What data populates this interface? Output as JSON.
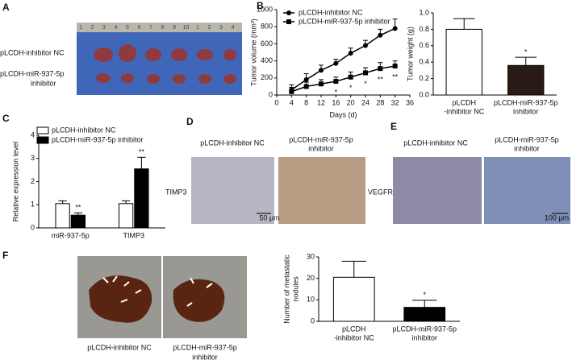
{
  "panel_labels": [
    "A",
    "B",
    "C",
    "D",
    "E",
    "F"
  ],
  "panel_a": {
    "ruler": [
      "1",
      "2",
      "3",
      "4",
      "5",
      "6",
      "7",
      "8",
      "9",
      "10",
      "1",
      "2",
      "3",
      "4"
    ],
    "rows": [
      "pLCDH-inhibitor NC",
      [
        "pLCDH-miR-937-5p",
        "inhibitor"
      ]
    ]
  },
  "panel_d": {
    "columns": [
      "pLCDH-inhibitor NC",
      [
        "pLCDH-miR-937-5p",
        "inhibitor"
      ]
    ],
    "row_label": "TIMP3",
    "scale_bar": "50 μm"
  },
  "panel_e": {
    "columns": [
      "pLCDH-inhibitor NC",
      [
        "pLCDH-miR-937-5p",
        "inhibitor"
      ]
    ],
    "row_label": "VEGFR",
    "scale_bar": "100 μm"
  },
  "panel_f": {
    "captions": [
      "pLCDH-inhibitor NC",
      [
        "pLCDH-miR-937-5p",
        "inhibitor"
      ]
    ]
  },
  "chart_data": [
    {
      "type": "line",
      "y_label": "Tumor volume (mm³)",
      "x_label": "Days (d)",
      "x": [
        4,
        8,
        12,
        16,
        20,
        24,
        28,
        32
      ],
      "xlim": [
        0,
        36
      ],
      "xticks": [
        0,
        4,
        8,
        12,
        16,
        20,
        24,
        28,
        32,
        36
      ],
      "ylim": [
        0,
        1000
      ],
      "yticks": [
        0,
        200,
        400,
        600,
        800,
        1000
      ],
      "series": [
        {
          "name": "pLCDH-inhibitor NC",
          "color": "#000000",
          "marker": "circle",
          "values": [
            60,
            180,
            290,
            370,
            490,
            580,
            700,
            780
          ],
          "errors": [
            60,
            70,
            60,
            50,
            60,
            60,
            70,
            110
          ]
        },
        {
          "name": "pLCDH-miR-937-5p inhibitor",
          "color": "#000000",
          "marker": "square",
          "values": [
            40,
            100,
            130,
            160,
            210,
            260,
            310,
            340
          ],
          "errors": [
            50,
            50,
            50,
            50,
            60,
            60,
            70,
            60
          ],
          "significance": [
            null,
            null,
            null,
            "*",
            "*",
            "*",
            "**",
            "**"
          ]
        }
      ]
    },
    {
      "type": "bar",
      "y_label": "Tumor weight (g)",
      "categories": [
        [
          "pLCDH",
          "-inhibitor NC"
        ],
        [
          "pLCDH-miR-937-5p",
          "inhibitor"
        ]
      ],
      "values": [
        0.8,
        0.36
      ],
      "errors": [
        0.13,
        0.1
      ],
      "colors": [
        "#ffffff",
        "#2a1a14"
      ],
      "significance": [
        null,
        "*"
      ],
      "ylim": [
        0,
        1
      ],
      "yticks": [
        {
          "value": 0,
          "label": "0.0"
        },
        0.2,
        0.4,
        0.6,
        0.8,
        {
          "value": 1,
          "label": "1.0"
        }
      ]
    },
    {
      "type": "bar",
      "y_label": "Relative expression level",
      "categories": [
        "miR-937-5p",
        "TIMP3"
      ],
      "ylim": [
        0,
        4
      ],
      "yticks": [
        0,
        1,
        2,
        3,
        4
      ],
      "series": [
        {
          "name": "pLCDH-inhibitor NC",
          "color": "#ffffff",
          "values": [
            1.05,
            1.05
          ],
          "errors": [
            0.12,
            0.12
          ]
        },
        {
          "name": "pLCDH-miR-937-5p inhibitor",
          "color": "#000000",
          "values": [
            0.55,
            2.55
          ],
          "errors": [
            0.1,
            0.5
          ],
          "significance": [
            "**",
            "**"
          ]
        }
      ]
    },
    {
      "type": "bar",
      "y_label": [
        "Number of metastatic",
        "nodules"
      ],
      "categories": [
        [
          "pLCDH",
          "-inhibitor NC"
        ],
        [
          "pLCDH-miR-937-5p",
          "inhibitor"
        ]
      ],
      "values": [
        20.5,
        6.5
      ],
      "errors": [
        7.5,
        3.3
      ],
      "colors": [
        "#ffffff",
        "#000000"
      ],
      "significance": [
        null,
        "*"
      ],
      "ylim": [
        0,
        30
      ],
      "yticks": [
        0,
        10,
        20,
        30
      ]
    }
  ]
}
